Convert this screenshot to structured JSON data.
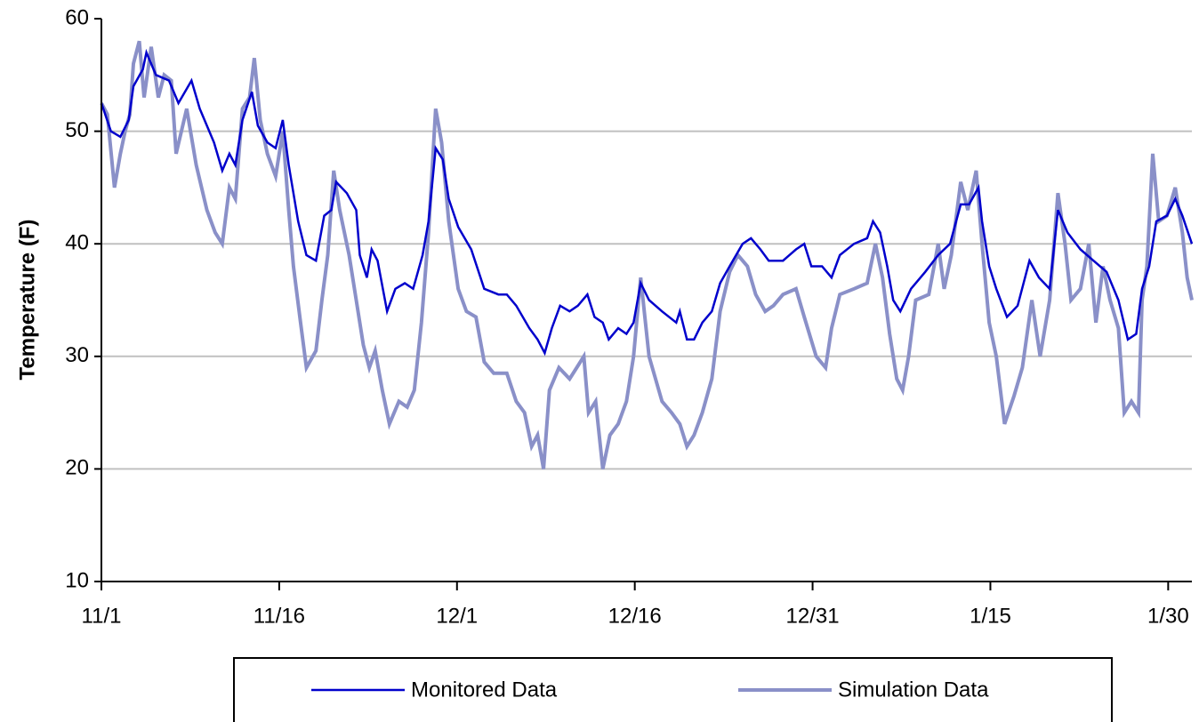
{
  "chart_data": {
    "type": "line",
    "ylabel": "Temperature (F)",
    "xlim": [
      0,
      92
    ],
    "xticks": [
      {
        "value": 0,
        "label": "11/1"
      },
      {
        "value": 15,
        "label": "11/16"
      },
      {
        "value": 30,
        "label": "12/1"
      },
      {
        "value": 45,
        "label": "12/16"
      },
      {
        "value": 60,
        "label": "12/31"
      },
      {
        "value": 75,
        "label": "1/15"
      },
      {
        "value": 90,
        "label": "1/30"
      }
    ],
    "ylim": [
      10,
      60
    ],
    "yticks": [
      10,
      20,
      30,
      40,
      50,
      60
    ],
    "grid": true,
    "legend": "bottom",
    "series": [
      {
        "name": "Monitored Data",
        "color": "#0000cc",
        "x": [
          0,
          0.8,
          1.6,
          2.3,
          2.7,
          3.5,
          3.8,
          4.6,
          5.7,
          6.5,
          7.6,
          8.3,
          9.5,
          10.2,
          10.8,
          11.3,
          11.9,
          12.7,
          13.2,
          14.0,
          14.7,
          15.3,
          15.8,
          16.6,
          17.3,
          18.1,
          18.8,
          19.4,
          19.8,
          20.7,
          21.5,
          21.8,
          22.4,
          22.8,
          23.3,
          24.1,
          24.8,
          25.6,
          26.3,
          27.1,
          27.6,
          28.2,
          28.8,
          29.3,
          30.1,
          31.2,
          32.3,
          33.5,
          34.2,
          35.0,
          36.1,
          36.8,
          37.4,
          38.0,
          38.7,
          39.5,
          40.2,
          41.0,
          41.6,
          42.3,
          42.8,
          43.6,
          44.3,
          44.9,
          45.5,
          46.2,
          47.3,
          48.5,
          48.8,
          49.4,
          50.0,
          50.7,
          51.5,
          52.2,
          53.0,
          54.1,
          54.8,
          55.6,
          56.3,
          57.5,
          58.6,
          59.3,
          59.9,
          60.8,
          61.6,
          62.3,
          63.5,
          64.6,
          65.1,
          65.7,
          66.3,
          66.8,
          67.4,
          68.3,
          69.5,
          70.6,
          71.6,
          72.5,
          73.2,
          74.0,
          74.3,
          74.9,
          75.5,
          76.4,
          77.3,
          78.3,
          79.1,
          80.0,
          80.7,
          81.5,
          82.6,
          83.7,
          84.8,
          85.8,
          86.6,
          87.3,
          87.8,
          88.4,
          89.0,
          89.9,
          90.6,
          91.2,
          92.0
        ],
        "values": [
          52.5,
          50,
          49.5,
          51,
          54,
          55.5,
          57,
          55,
          54.5,
          52.5,
          54.5,
          52,
          49,
          46.5,
          48,
          47,
          51,
          53.5,
          50.5,
          49,
          48.5,
          51,
          47,
          42,
          39,
          38.5,
          42.5,
          43,
          45.5,
          44.5,
          43,
          39,
          37,
          39.5,
          38.5,
          34,
          36,
          36.5,
          36,
          39,
          42,
          48.5,
          47.5,
          44,
          41.5,
          39.5,
          36,
          35.5,
          35.5,
          34.5,
          32.5,
          31.5,
          30.3,
          32.5,
          34.5,
          34,
          34.5,
          35.5,
          33.5,
          33,
          31.5,
          32.5,
          32,
          33,
          36.5,
          35,
          34,
          33,
          34,
          31.5,
          31.5,
          33,
          34,
          36.5,
          38,
          40,
          40.5,
          39.5,
          38.5,
          38.5,
          39.5,
          40,
          38,
          38,
          37,
          39,
          40,
          40.5,
          42,
          41,
          38,
          35,
          34,
          36,
          37.5,
          39,
          40,
          43.5,
          43.5,
          45,
          42,
          38,
          36,
          33.5,
          34.5,
          38.5,
          37,
          36,
          43,
          41,
          39.5,
          38.5,
          37.5,
          35,
          31.5,
          32,
          36,
          38,
          42,
          42.5,
          44,
          42.5,
          40
        ]
      },
      {
        "name": "Simulation Data",
        "color": "#8a90c8",
        "x": [
          0,
          0.5,
          1.1,
          1.6,
          2.0,
          2.4,
          2.7,
          3.2,
          3.6,
          4.2,
          4.8,
          5.3,
          5.9,
          6.3,
          7.2,
          8.0,
          8.9,
          9.6,
          10.2,
          10.8,
          11.3,
          11.9,
          12.5,
          12.9,
          13.4,
          14.0,
          14.7,
          15.3,
          15.8,
          16.2,
          16.8,
          17.3,
          18.1,
          18.6,
          19.1,
          19.6,
          20.1,
          20.9,
          21.5,
          22.1,
          22.6,
          23.1,
          23.7,
          24.3,
          25.1,
          25.8,
          26.4,
          27.0,
          27.6,
          28.2,
          28.7,
          29.3,
          30.1,
          30.8,
          31.6,
          32.3,
          33.1,
          34.2,
          35.0,
          35.7,
          36.3,
          36.8,
          37.3,
          37.8,
          38.6,
          39.5,
          40.1,
          40.7,
          41.1,
          41.7,
          42.3,
          42.9,
          43.6,
          44.3,
          44.9,
          45.5,
          46.2,
          47.3,
          48.1,
          48.8,
          49.4,
          50.0,
          50.7,
          51.5,
          52.2,
          53.0,
          53.7,
          54.5,
          55.2,
          56.0,
          56.7,
          57.5,
          58.6,
          59.3,
          60.3,
          61.1,
          61.6,
          62.3,
          63.5,
          64.6,
          65.3,
          65.9,
          66.5,
          67.1,
          67.6,
          68.1,
          68.7,
          69.8,
          70.6,
          71.1,
          71.7,
          72.5,
          73.1,
          73.8,
          74.3,
          74.9,
          75.5,
          76.2,
          77.0,
          77.7,
          78.5,
          79.2,
          80.0,
          80.7,
          81.3,
          81.8,
          82.6,
          83.3,
          83.9,
          84.5,
          85.1,
          85.8,
          86.3,
          86.9,
          87.5,
          87.8,
          88.2,
          88.7,
          89.2,
          89.9,
          90.6,
          91.2,
          91.6,
          92.0
        ],
        "values": [
          52.5,
          51.5,
          45,
          48,
          50,
          51.5,
          56,
          58,
          53,
          57.5,
          53,
          55,
          54.5,
          48,
          52,
          47,
          43,
          41,
          40,
          45,
          44,
          52,
          53,
          56.5,
          51,
          48,
          46,
          50,
          43,
          38,
          33,
          29,
          30.5,
          35,
          39,
          46.5,
          43,
          39,
          35,
          31,
          29,
          30.5,
          27,
          24,
          26,
          25.5,
          27,
          33,
          41,
          52,
          49,
          42,
          36,
          34,
          33.5,
          29.5,
          28.5,
          28.5,
          26,
          25,
          22,
          23,
          20,
          27,
          29,
          28,
          29,
          30,
          25,
          26,
          20,
          23,
          24,
          26,
          30,
          37,
          30,
          26,
          25,
          24,
          22,
          23,
          25,
          28,
          34,
          37.5,
          39,
          38,
          35.5,
          34,
          34.5,
          35.5,
          36,
          33.5,
          30,
          29,
          32.5,
          35.5,
          36,
          36.5,
          40,
          37,
          32,
          28,
          27,
          30,
          35,
          35.5,
          40,
          36,
          39,
          45.5,
          43,
          46.5,
          40,
          33,
          30,
          24,
          26.5,
          29,
          35,
          30,
          35,
          44.5,
          40,
          35,
          36,
          40,
          33,
          38,
          35,
          32.5,
          25,
          26,
          25,
          35,
          38,
          48,
          42,
          42.5,
          45,
          41,
          37,
          35
        ]
      }
    ]
  }
}
